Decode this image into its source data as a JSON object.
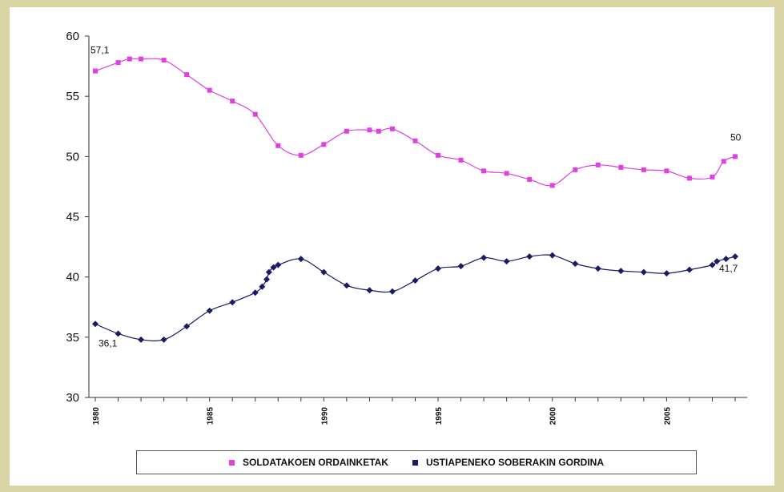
{
  "chart_data": {
    "type": "line",
    "x": [
      1980,
      1981,
      1982,
      1983,
      1984,
      1985,
      1986,
      1987,
      1988,
      1989,
      1990,
      1991,
      1992,
      1993,
      1994,
      1995,
      1996,
      1997,
      1998,
      1999,
      2000,
      2001,
      2002,
      2003,
      2004,
      2005,
      2006,
      2007,
      2008
    ],
    "x_tick_labels": [
      "1980",
      "1985",
      "1990",
      "1995",
      "2000",
      "2005"
    ],
    "ylim": [
      30,
      60
    ],
    "yticks": [
      30,
      35,
      40,
      45,
      50,
      55,
      60
    ],
    "grid": false,
    "legend_position": "bottom",
    "series": [
      {
        "name": "SOLDATAKOEN ORDAINKETAK",
        "color": "#e040e0",
        "values": [
          57.1,
          57.8,
          58.1,
          58.0,
          56.8,
          55.5,
          54.6,
          53.5,
          50.9,
          50.1,
          51.0,
          52.1,
          52.2,
          52.3,
          51.3,
          50.1,
          49.7,
          48.8,
          48.6,
          48.1,
          47.6,
          48.9,
          49.3,
          49.1,
          48.9,
          48.8,
          48.2,
          48.3,
          50.0
        ],
        "extra_points": [
          [
            1981.5,
            58.1
          ],
          [
            1992.4,
            52.1
          ],
          [
            2007.5,
            49.6
          ]
        ],
        "start_label": "57,1",
        "end_label": "50"
      },
      {
        "name": "USTIAPENEKO SOBERAKIN GORDINA",
        "color": "#1a1a66",
        "values": [
          36.1,
          35.3,
          34.8,
          34.8,
          35.9,
          37.2,
          37.9,
          38.7,
          41.0,
          41.5,
          40.4,
          39.3,
          38.9,
          38.8,
          39.7,
          40.7,
          40.9,
          41.6,
          41.3,
          41.7,
          41.8,
          41.1,
          40.7,
          40.5,
          40.4,
          40.3,
          40.6,
          41.0,
          41.7
        ],
        "extra_points": [
          [
            1987.3,
            39.2
          ],
          [
            1987.5,
            39.8
          ],
          [
            1987.6,
            40.4
          ],
          [
            1987.8,
            40.8
          ],
          [
            2007.2,
            41.3
          ],
          [
            2007.6,
            41.5
          ]
        ],
        "start_label": "36,1",
        "end_label": "41,7"
      }
    ]
  }
}
